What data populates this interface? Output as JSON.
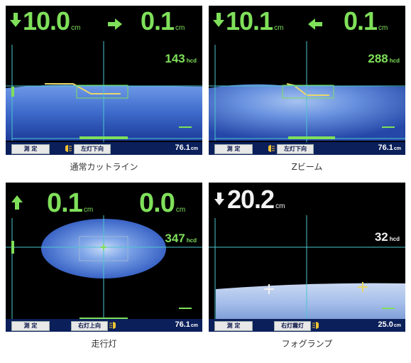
{
  "colors": {
    "green": "#7fe05a",
    "white": "#f2f2f2",
    "cyan": "#4cc6cf",
    "beam": "#3a63c8",
    "bar": "#0b1f5a"
  },
  "panels": [
    {
      "caption": "通常カットライン",
      "vertical": {
        "value": "10.0",
        "unit": "cm",
        "arrow": "down-arrow-icon"
      },
      "horizontal": {
        "value": "0.1",
        "unit": "cm",
        "arrow": "right-arrow-icon"
      },
      "intensity": {
        "value": "143",
        "unit": "hcd"
      },
      "mode_label": "測 定",
      "lamp_label": "左灯下向",
      "distance": {
        "value": "76.1",
        "unit": "cm"
      }
    },
    {
      "caption": "Zビーム",
      "vertical": {
        "value": "10.1",
        "unit": "cm",
        "arrow": "down-arrow-icon"
      },
      "horizontal": {
        "value": "0.1",
        "unit": "cm",
        "arrow": "left-arrow-icon"
      },
      "intensity": {
        "value": "288",
        "unit": "hcd"
      },
      "mode_label": "測 定",
      "lamp_label": "左灯下向",
      "distance": {
        "value": "76.1",
        "unit": "cm"
      }
    },
    {
      "caption": "走行灯",
      "vertical": {
        "value": "0.1",
        "unit": "cm",
        "arrow": "up-arrow-icon"
      },
      "horizontal": {
        "value": "0.0",
        "unit": "cm",
        "arrow": ""
      },
      "intensity": {
        "value": "347",
        "unit": "hcd"
      },
      "mode_label": "測 定",
      "lamp_label": "右灯上向",
      "distance": {
        "value": "76.1",
        "unit": "cm"
      }
    },
    {
      "caption": "フォグランプ",
      "vertical": {
        "value": "20.2",
        "unit": "cm",
        "arrow": "down-arrow-icon"
      },
      "horizontal": {
        "value": "",
        "unit": "",
        "arrow": ""
      },
      "intensity": {
        "value": "32",
        "unit": "hcd"
      },
      "mode_label": "測 定",
      "lamp_label": "右灯霧灯",
      "distance": {
        "value": "25.0",
        "unit": "cm"
      }
    }
  ]
}
